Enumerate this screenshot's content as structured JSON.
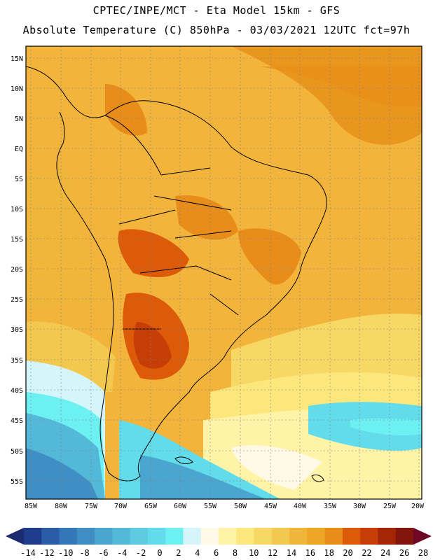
{
  "header": {
    "line1": "CPTEC/INPE/MCT -  Eta Model 15km - GFS",
    "line2": "Absolute Temperature (C) 850hPa - 03/03/2021 12UTC fct=97h"
  },
  "axes": {
    "lat_labels": [
      "15N",
      "10N",
      "5N",
      "EQ",
      "5S",
      "10S",
      "15S",
      "20S",
      "25S",
      "30S",
      "35S",
      "40S",
      "45S",
      "50S",
      "55S"
    ],
    "lon_labels": [
      "85W",
      "80W",
      "75W",
      "70W",
      "65W",
      "60W",
      "55W",
      "50W",
      "45W",
      "40W",
      "35W",
      "30W",
      "25W",
      "20W"
    ]
  },
  "colorbar": {
    "labels": [
      "-14",
      "-12",
      "-10",
      "-8",
      "-6",
      "-4",
      "-2",
      "0",
      "2",
      "4",
      "6",
      "8",
      "10",
      "12",
      "14",
      "16",
      "18",
      "20",
      "22",
      "24",
      "26",
      "28"
    ],
    "colors": [
      "#1f3d8c",
      "#2a5ca8",
      "#3477b8",
      "#3f8fc5",
      "#4aa5cf",
      "#54b8d8",
      "#5ecbe2",
      "#62dbea",
      "#6cf0f2",
      "#d4f6fa",
      "#fff9e6",
      "#fff3a8",
      "#fce77c",
      "#f8d865",
      "#f3c84f",
      "#f0b63a",
      "#eea627",
      "#e88d1a",
      "#dd5a08",
      "#c63e06",
      "#a42606",
      "#82160c"
    ],
    "low_arrow_color": "#1c2b70",
    "high_arrow_color": "#6e0826"
  },
  "map": {
    "background_color": "#f2b43a",
    "ocean_cold_color": "#4fc4da"
  }
}
